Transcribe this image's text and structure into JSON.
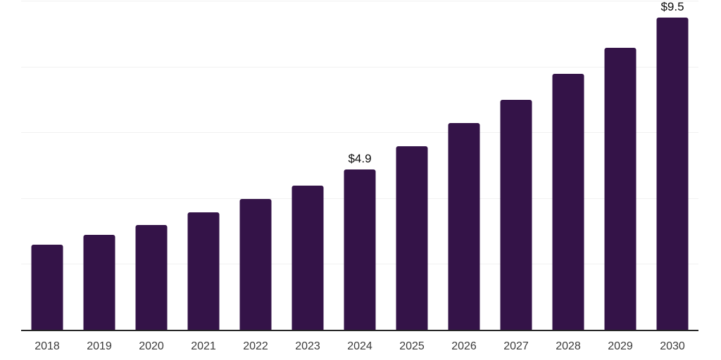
{
  "chart_data": {
    "type": "bar",
    "title": "",
    "xlabel": "",
    "ylabel": "",
    "categories": [
      "2018",
      "2019",
      "2020",
      "2021",
      "2022",
      "2023",
      "2024",
      "2025",
      "2026",
      "2027",
      "2028",
      "2029",
      "2030"
    ],
    "values": [
      2.6,
      2.9,
      3.2,
      3.6,
      4.0,
      4.4,
      4.9,
      5.6,
      6.3,
      7.0,
      7.8,
      8.6,
      9.5
    ],
    "data_labels": [
      "",
      "",
      "",
      "",
      "",
      "",
      "$4.9",
      "",
      "",
      "",
      "",
      "",
      "$9.5"
    ],
    "ylim": [
      0,
      10
    ],
    "gridline_values": [
      2,
      4,
      6,
      8,
      10
    ],
    "grid": true,
    "legend_position": "none",
    "colors": {
      "bar": "#341348",
      "gridline": "#f1f1f1",
      "axis_line": "#262626",
      "tick_label": "#3a3a3a",
      "data_label": "#0b0b0b",
      "background": "#ffffff"
    }
  }
}
